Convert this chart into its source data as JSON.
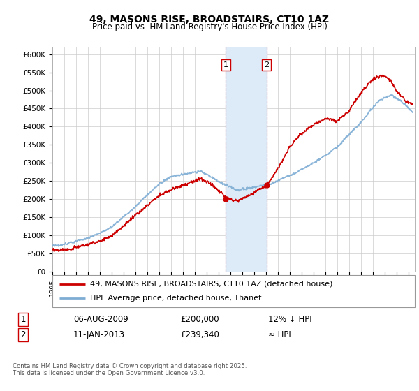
{
  "title": "49, MASONS RISE, BROADSTAIRS, CT10 1AZ",
  "subtitle": "Price paid vs. HM Land Registry's House Price Index (HPI)",
  "ylim": [
    0,
    620000
  ],
  "xlim_start": 1995.0,
  "xlim_end": 2025.5,
  "transaction1_date": 2009.59,
  "transaction1_price": 200000,
  "transaction2_date": 2013.03,
  "transaction2_price": 239340,
  "shaded_region_start": 2009.59,
  "shaded_region_end": 2013.03,
  "legend_line1": "49, MASONS RISE, BROADSTAIRS, CT10 1AZ (detached house)",
  "legend_line2": "HPI: Average price, detached house, Thanet",
  "table_row1": [
    "1",
    "06-AUG-2009",
    "£200,000",
    "12% ↓ HPI"
  ],
  "table_row2": [
    "2",
    "11-JAN-2013",
    "£239,340",
    "≈ HPI"
  ],
  "footnote": "Contains HM Land Registry data © Crown copyright and database right 2025.\nThis data is licensed under the Open Government Licence v3.0.",
  "red_color": "#cc0000",
  "blue_color": "#7eadd4",
  "shaded_color": "#ddeaf7",
  "grid_color": "#cccccc",
  "spine_color": "#aaaaaa"
}
